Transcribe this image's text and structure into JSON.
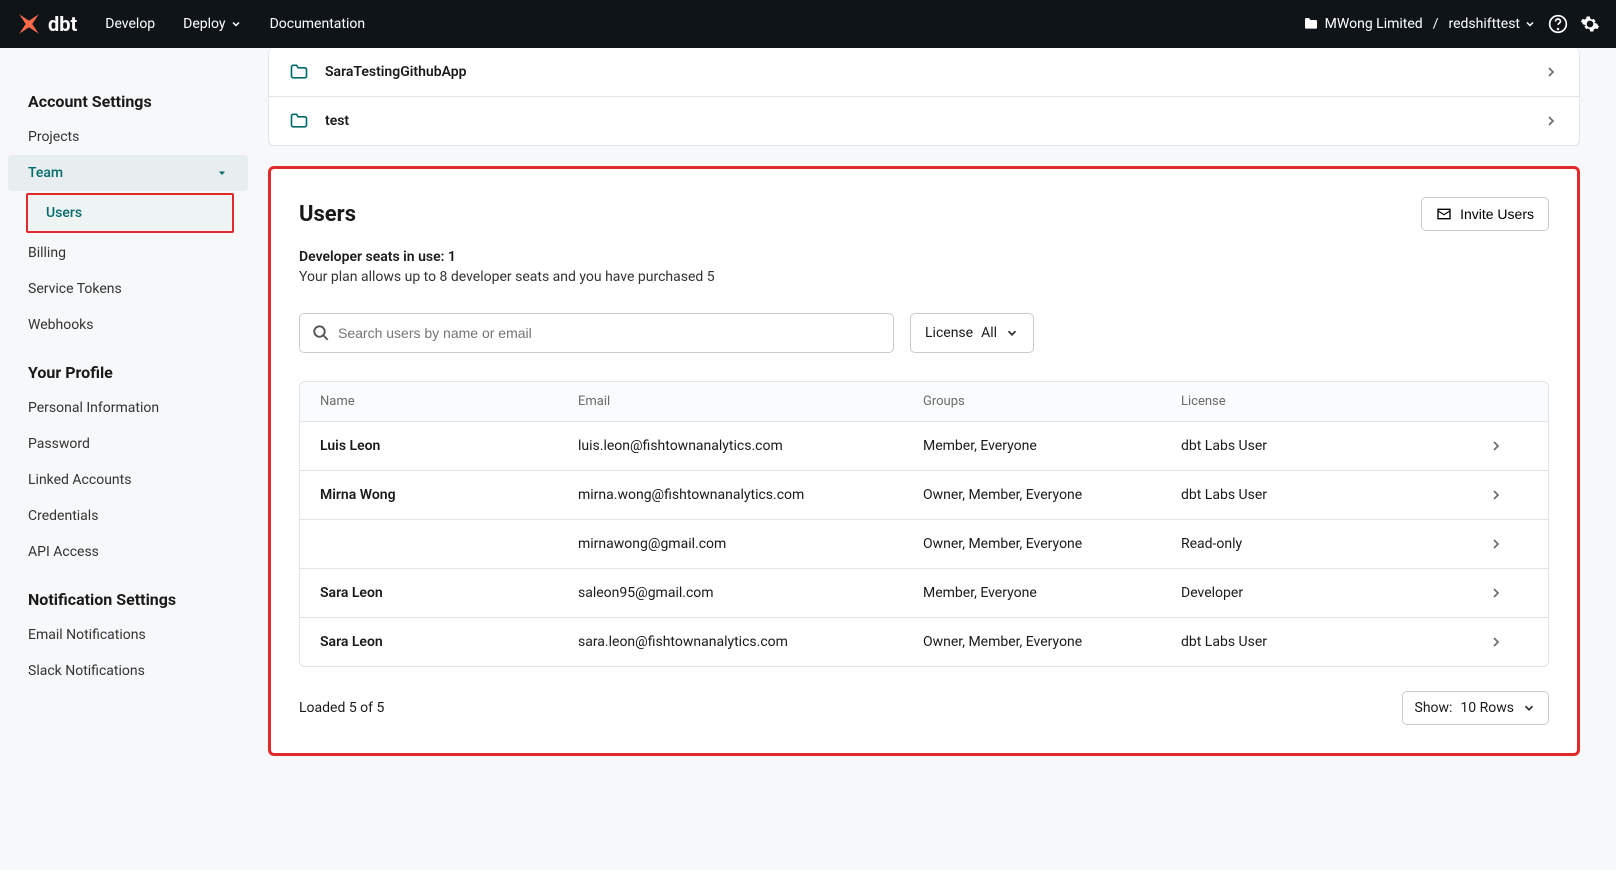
{
  "topnav": {
    "brand": "dbt",
    "links": {
      "develop": "Develop",
      "deploy": "Deploy",
      "docs": "Documentation"
    },
    "org": "MWong Limited",
    "separator": "/",
    "project": "redshifttest"
  },
  "sidebar": {
    "account_settings": "Account Settings",
    "projects": "Projects",
    "team": "Team",
    "users": "Users",
    "billing": "Billing",
    "service_tokens": "Service Tokens",
    "webhooks": "Webhooks",
    "your_profile": "Your Profile",
    "personal_info": "Personal Information",
    "password": "Password",
    "linked_accounts": "Linked Accounts",
    "credentials": "Credentials",
    "api_access": "API Access",
    "notification_settings": "Notification Settings",
    "email_notifications": "Email Notifications",
    "slack_notifications": "Slack Notifications"
  },
  "project_rows": [
    {
      "name": "SaraTestingGithubApp"
    },
    {
      "name": "test"
    }
  ],
  "users_section": {
    "title": "Users",
    "invite_label": "Invite Users",
    "seats_label": "Developer seats in use:",
    "seats_value": "1",
    "plan_text": "Your plan allows up to 8 developer seats and you have purchased 5",
    "search_placeholder": "Search users by name or email",
    "license_label": "License",
    "license_value": "All",
    "columns": {
      "name": "Name",
      "email": "Email",
      "groups": "Groups",
      "license": "License"
    },
    "rows": [
      {
        "name": "Luis Leon",
        "email": "luis.leon@fishtownanalytics.com",
        "groups": "Member, Everyone",
        "license": "dbt Labs User"
      },
      {
        "name": "Mirna Wong",
        "email": "mirna.wong@fishtownanalytics.com",
        "groups": "Owner, Member, Everyone",
        "license": "dbt Labs User"
      },
      {
        "name": "",
        "email": "mirnawong@gmail.com",
        "groups": "Owner, Member, Everyone",
        "license": "Read-only"
      },
      {
        "name": "Sara Leon",
        "email": "saleon95@gmail.com",
        "groups": "Member, Everyone",
        "license": "Developer"
      },
      {
        "name": "Sara Leon",
        "email": "sara.leon@fishtownanalytics.com",
        "groups": "Owner, Member, Everyone",
        "license": "dbt Labs User"
      }
    ],
    "loaded_text": "Loaded 5 of 5",
    "show_label": "Show:",
    "show_value": "10 Rows"
  },
  "colors": {
    "accent": "#ff694a",
    "teal": "#046b6b",
    "highlight_border": "#e12b2b",
    "nav_bg": "#0f1419",
    "page_bg": "#f7f8fa",
    "border": "#e1e4e8"
  }
}
